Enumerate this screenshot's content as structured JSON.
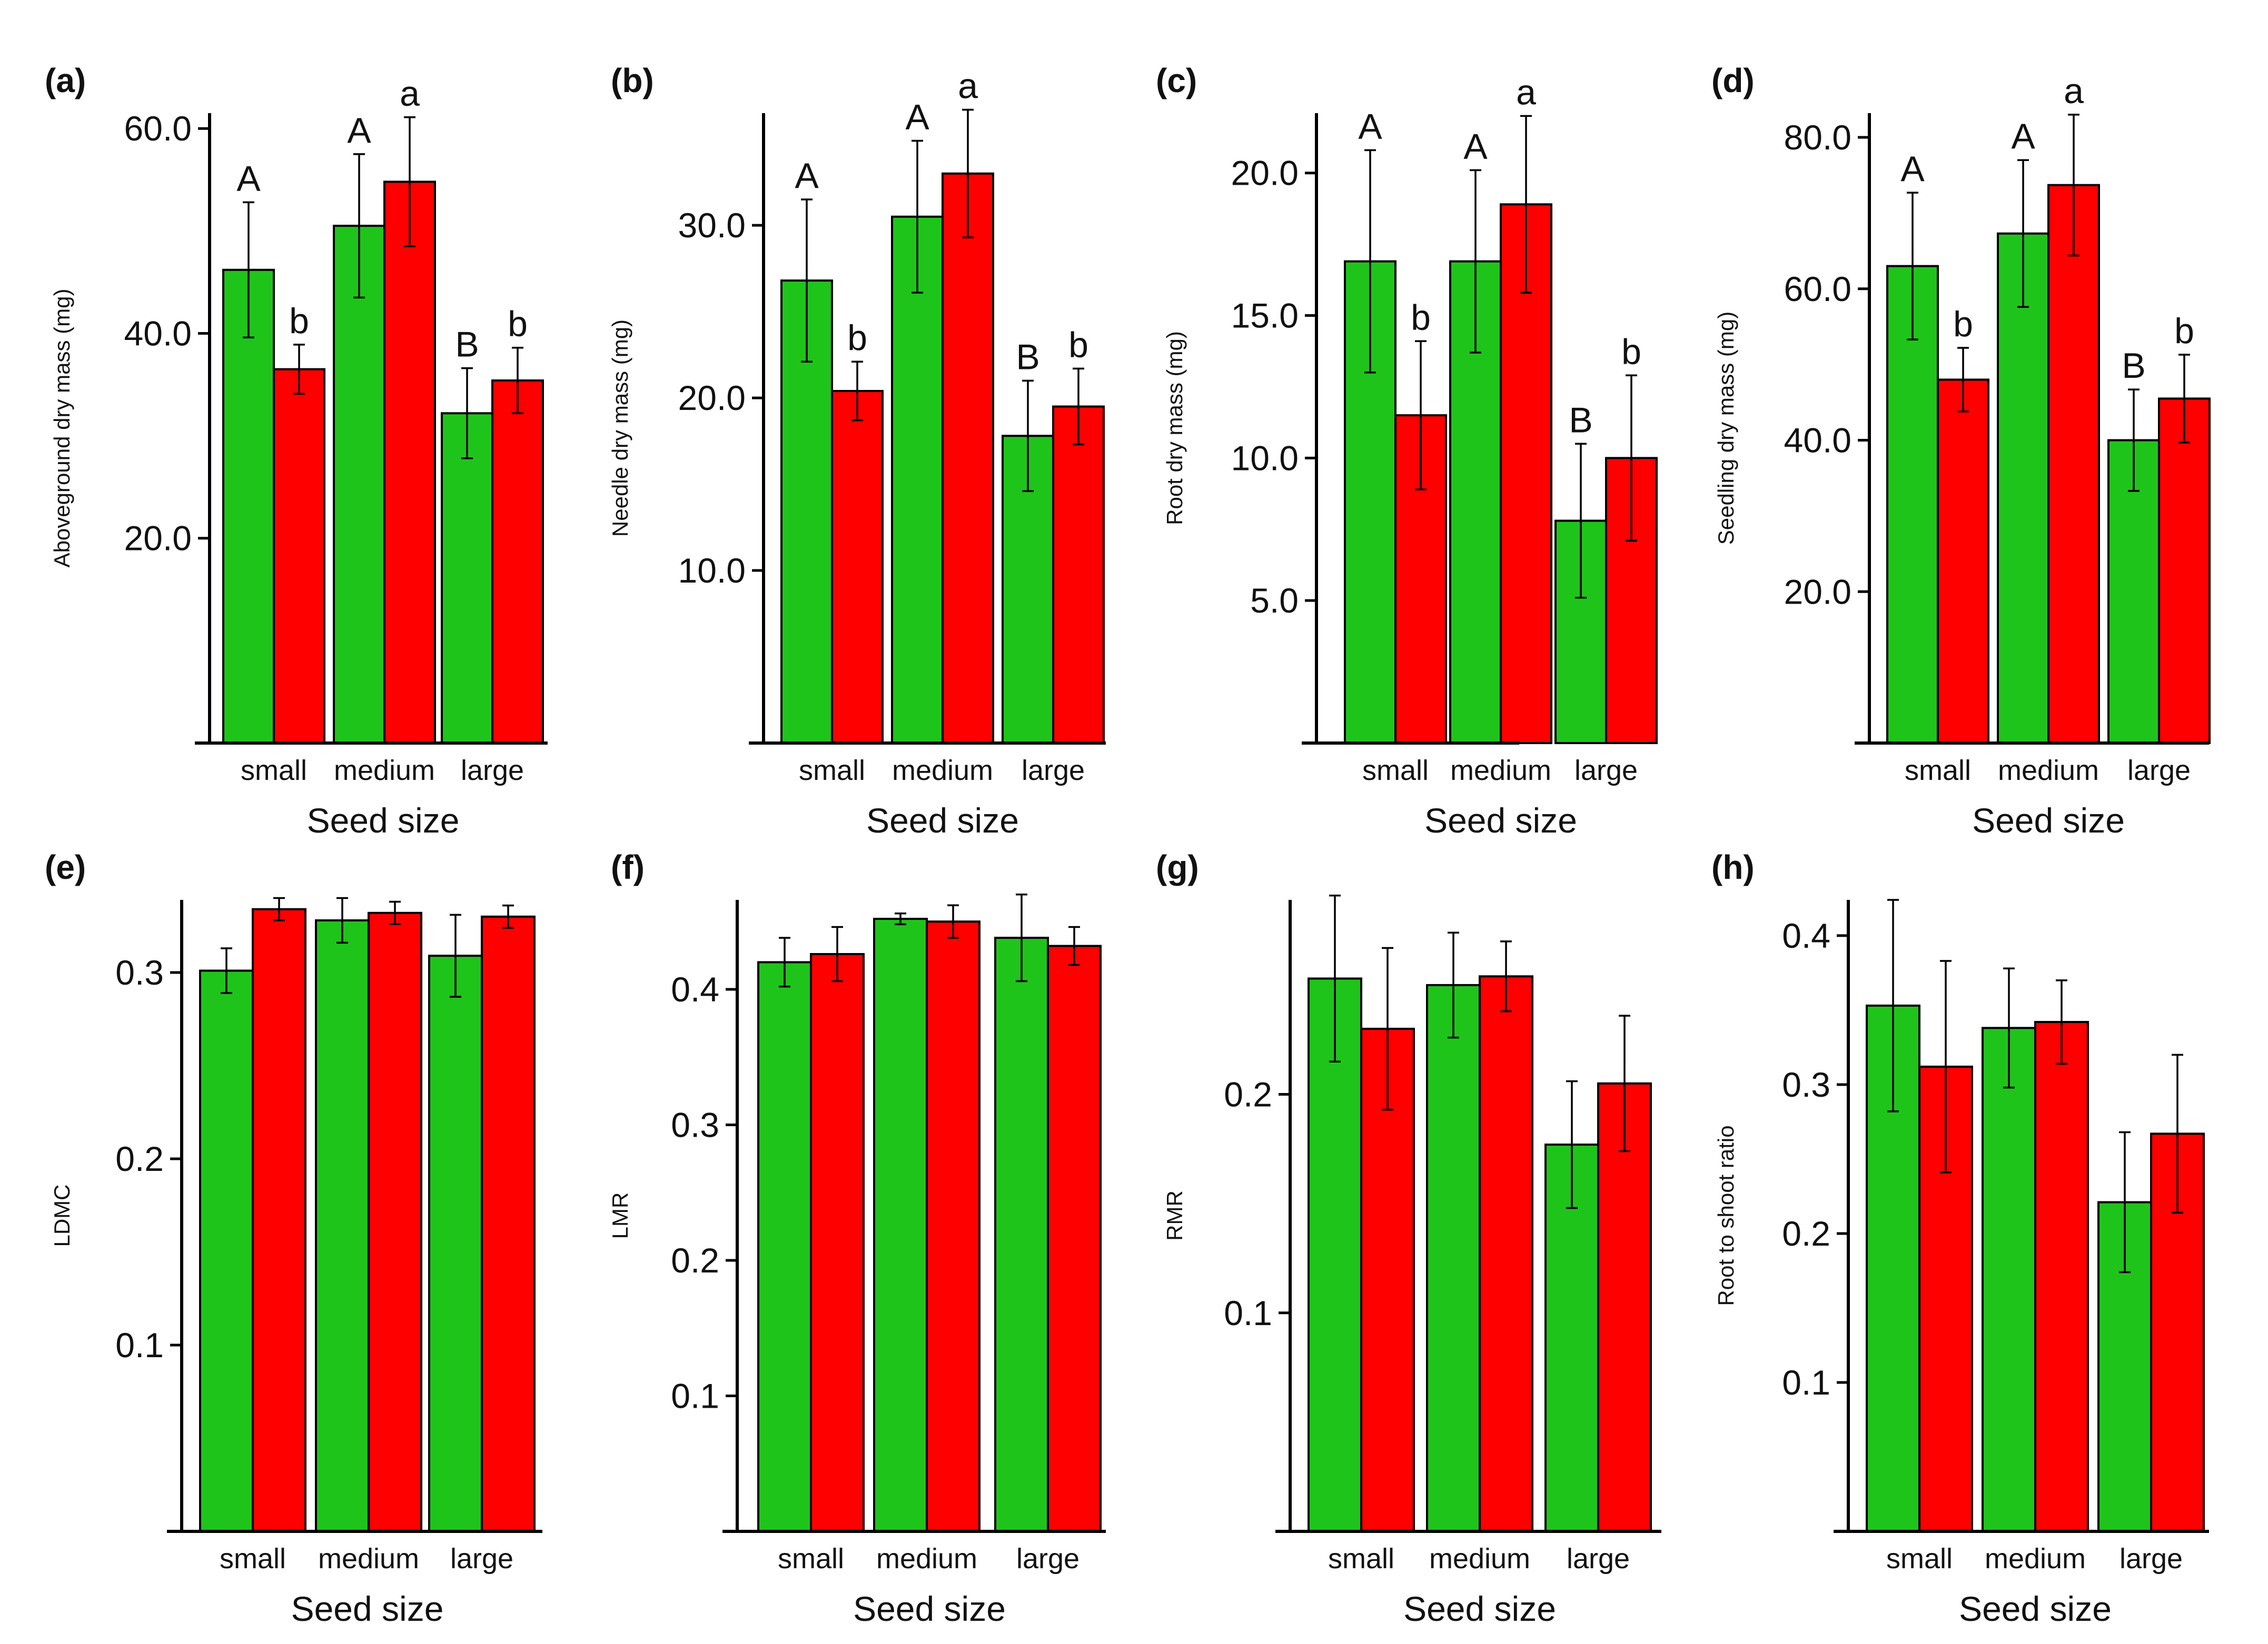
{
  "colors": {
    "green": "#1fc41a",
    "red": "#ff0000",
    "axis": "#000000",
    "bar_edge": "#000000"
  },
  "panels": [
    {
      "letter": "(a)",
      "type": "bar",
      "ylabel": "Aboveground dry mass (mg)",
      "xlabel": "Seed size",
      "categories": [
        "small",
        "medium",
        "large"
      ],
      "yticks": [
        "20.0",
        "40.0",
        "60.0"
      ],
      "ylim": [
        0,
        61.5
      ],
      "series": [
        {
          "values": [
            46.2,
            50.5,
            32.2
          ],
          "err": [
            6.6,
            7.0,
            4.4
          ]
        },
        {
          "values": [
            36.5,
            54.8,
            35.4
          ],
          "err": [
            2.4,
            6.3,
            3.2
          ]
        }
      ],
      "sig_green": [
        "A",
        "A",
        "B"
      ],
      "sig_red": [
        "b",
        "a",
        "b"
      ]
    },
    {
      "letter": "(b)",
      "type": "bar",
      "ylabel": "Needle dry mass (mg)",
      "xlabel": "Seed size",
      "categories": [
        "small",
        "medium",
        "large"
      ],
      "yticks": [
        "10.0",
        "20.0",
        "30.0"
      ],
      "ylim": [
        0,
        36.5
      ],
      "series": [
        {
          "values": [
            26.8,
            30.5,
            17.8
          ],
          "err": [
            4.7,
            4.4,
            3.2
          ]
        },
        {
          "values": [
            20.4,
            33.0,
            19.5
          ],
          "err": [
            1.7,
            3.7,
            2.2
          ]
        }
      ],
      "sig_green": [
        "A",
        "A",
        "B"
      ],
      "sig_red": [
        "b",
        "a",
        "b"
      ]
    },
    {
      "letter": "(c)",
      "type": "bar",
      "ylabel": "Root dry mass (mg)",
      "xlabel": "Seed size",
      "categories": [
        "small",
        "medium",
        "large"
      ],
      "yticks": [
        "5.0",
        "10.0",
        "15.0",
        "20.0"
      ],
      "ylim": [
        0,
        22.1
      ],
      "series": [
        {
          "values": [
            16.9,
            16.9,
            7.8
          ],
          "err": [
            3.9,
            3.2,
            2.7
          ]
        },
        {
          "values": [
            11.5,
            18.9,
            10.0
          ],
          "err": [
            2.6,
            3.1,
            2.9
          ]
        }
      ],
      "sig_green": [
        "A",
        "A",
        "B"
      ],
      "sig_red": [
        "b",
        "a",
        "b"
      ]
    },
    {
      "letter": "(d)",
      "type": "bar",
      "ylabel": "Seedling dry mass (mg)",
      "xlabel": "Seed size",
      "categories": [
        "small",
        "medium",
        "large"
      ],
      "yticks": [
        "20.0",
        "40.0",
        "60.0",
        "80.0"
      ],
      "ylim": [
        0,
        83.2
      ],
      "series": [
        {
          "values": [
            63.0,
            67.3,
            40.0
          ],
          "err": [
            9.7,
            9.7,
            6.7
          ]
        },
        {
          "values": [
            48.0,
            73.7,
            45.5
          ],
          "err": [
            4.2,
            9.3,
            5.8
          ]
        }
      ],
      "sig_green": [
        "A",
        "A",
        "B"
      ],
      "sig_red": [
        "b",
        "a",
        "b"
      ]
    },
    {
      "letter": "(e)",
      "type": "bar",
      "ylabel": "LDMC",
      "xlabel": "Seed size",
      "categories": [
        "small",
        "medium",
        "large"
      ],
      "yticks": [
        "0.1",
        "0.2",
        "0.3"
      ],
      "ylim": [
        0,
        0.339
      ],
      "series": [
        {
          "values": [
            0.301,
            0.328,
            0.309
          ],
          "err": [
            0.012,
            0.012,
            0.022
          ]
        },
        {
          "values": [
            0.334,
            0.332,
            0.33
          ],
          "err": [
            0.006,
            0.006,
            0.006
          ]
        }
      ],
      "sig_green": [],
      "sig_red": []
    },
    {
      "letter": "(f)",
      "type": "bar",
      "ylabel": "LMR",
      "xlabel": "Seed size",
      "categories": [
        "small",
        "medium",
        "large"
      ],
      "yticks": [
        "0.1",
        "0.2",
        "0.3",
        "0.4"
      ],
      "ylim": [
        0,
        0.466
      ],
      "series": [
        {
          "values": [
            0.42,
            0.452,
            0.438
          ],
          "err": [
            0.018,
            0.004,
            0.032
          ]
        },
        {
          "values": [
            0.426,
            0.45,
            0.432
          ],
          "err": [
            0.02,
            0.012,
            0.014
          ]
        }
      ],
      "sig_green": [],
      "sig_red": []
    },
    {
      "letter": "(g)",
      "type": "bar",
      "ylabel": "RMR",
      "xlabel": "Seed size",
      "categories": [
        "small",
        "medium",
        "large"
      ],
      "yticks": [
        "0.1",
        "0.2"
      ],
      "ylim": [
        0,
        0.289
      ],
      "series": [
        {
          "values": [
            0.253,
            0.25,
            0.177
          ],
          "err": [
            0.038,
            0.024,
            0.029
          ]
        },
        {
          "values": [
            0.23,
            0.254,
            0.205
          ],
          "err": [
            0.037,
            0.016,
            0.031
          ]
        }
      ],
      "sig_green": [],
      "sig_red": []
    },
    {
      "letter": "(h)",
      "type": "bar",
      "ylabel": "Root to shoot ratio",
      "xlabel": "Seed size",
      "categories": [
        "small",
        "medium",
        "large"
      ],
      "yticks": [
        "0.1",
        "0.2",
        "0.3",
        "0.4"
      ],
      "ylim": [
        0,
        0.424
      ],
      "series": [
        {
          "values": [
            0.353,
            0.338,
            0.221
          ],
          "err": [
            0.071,
            0.04,
            0.047
          ]
        },
        {
          "values": [
            0.312,
            0.342,
            0.267
          ],
          "err": [
            0.071,
            0.028,
            0.053
          ]
        }
      ],
      "sig_green": [],
      "sig_red": []
    }
  ]
}
